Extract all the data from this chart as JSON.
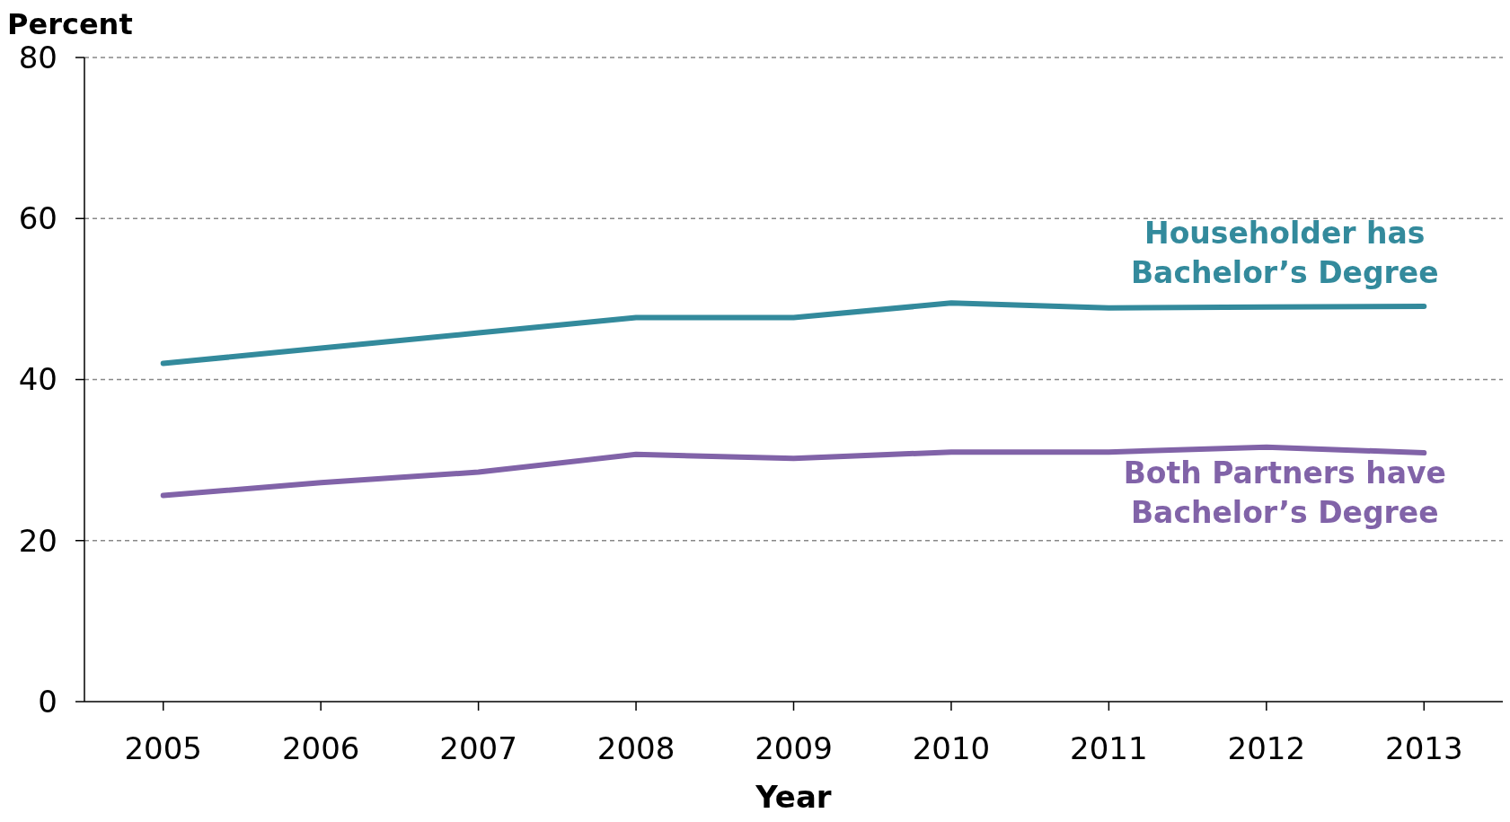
{
  "chart_data": {
    "type": "line",
    "ylabel": "Percent",
    "xlabel": "Year",
    "x": [
      2005,
      2006,
      2007,
      2008,
      2009,
      2010,
      2011,
      2012,
      2013
    ],
    "xlim": [
      2004.5,
      2013.5
    ],
    "xticks": [
      2005,
      2006,
      2007,
      2008,
      2009,
      2010,
      2011,
      2012,
      2013
    ],
    "ylim": [
      0,
      80
    ],
    "yticks": [
      0,
      20,
      40,
      60,
      80
    ],
    "grid": "y",
    "line_style": "solid",
    "legend": false,
    "series": [
      {
        "name": "Householder has Bachelor’s Degree",
        "color": "#338a9c",
        "values": [
          42.0,
          43.9,
          45.8,
          47.7,
          47.7,
          49.5,
          48.9,
          49.0,
          49.1
        ]
      },
      {
        "name": "Both Partners have Bachelor’s Degree",
        "color": "#8163a8",
        "values": [
          25.6,
          27.2,
          28.5,
          30.7,
          30.2,
          31.0,
          31.0,
          31.6,
          30.9
        ]
      }
    ]
  }
}
